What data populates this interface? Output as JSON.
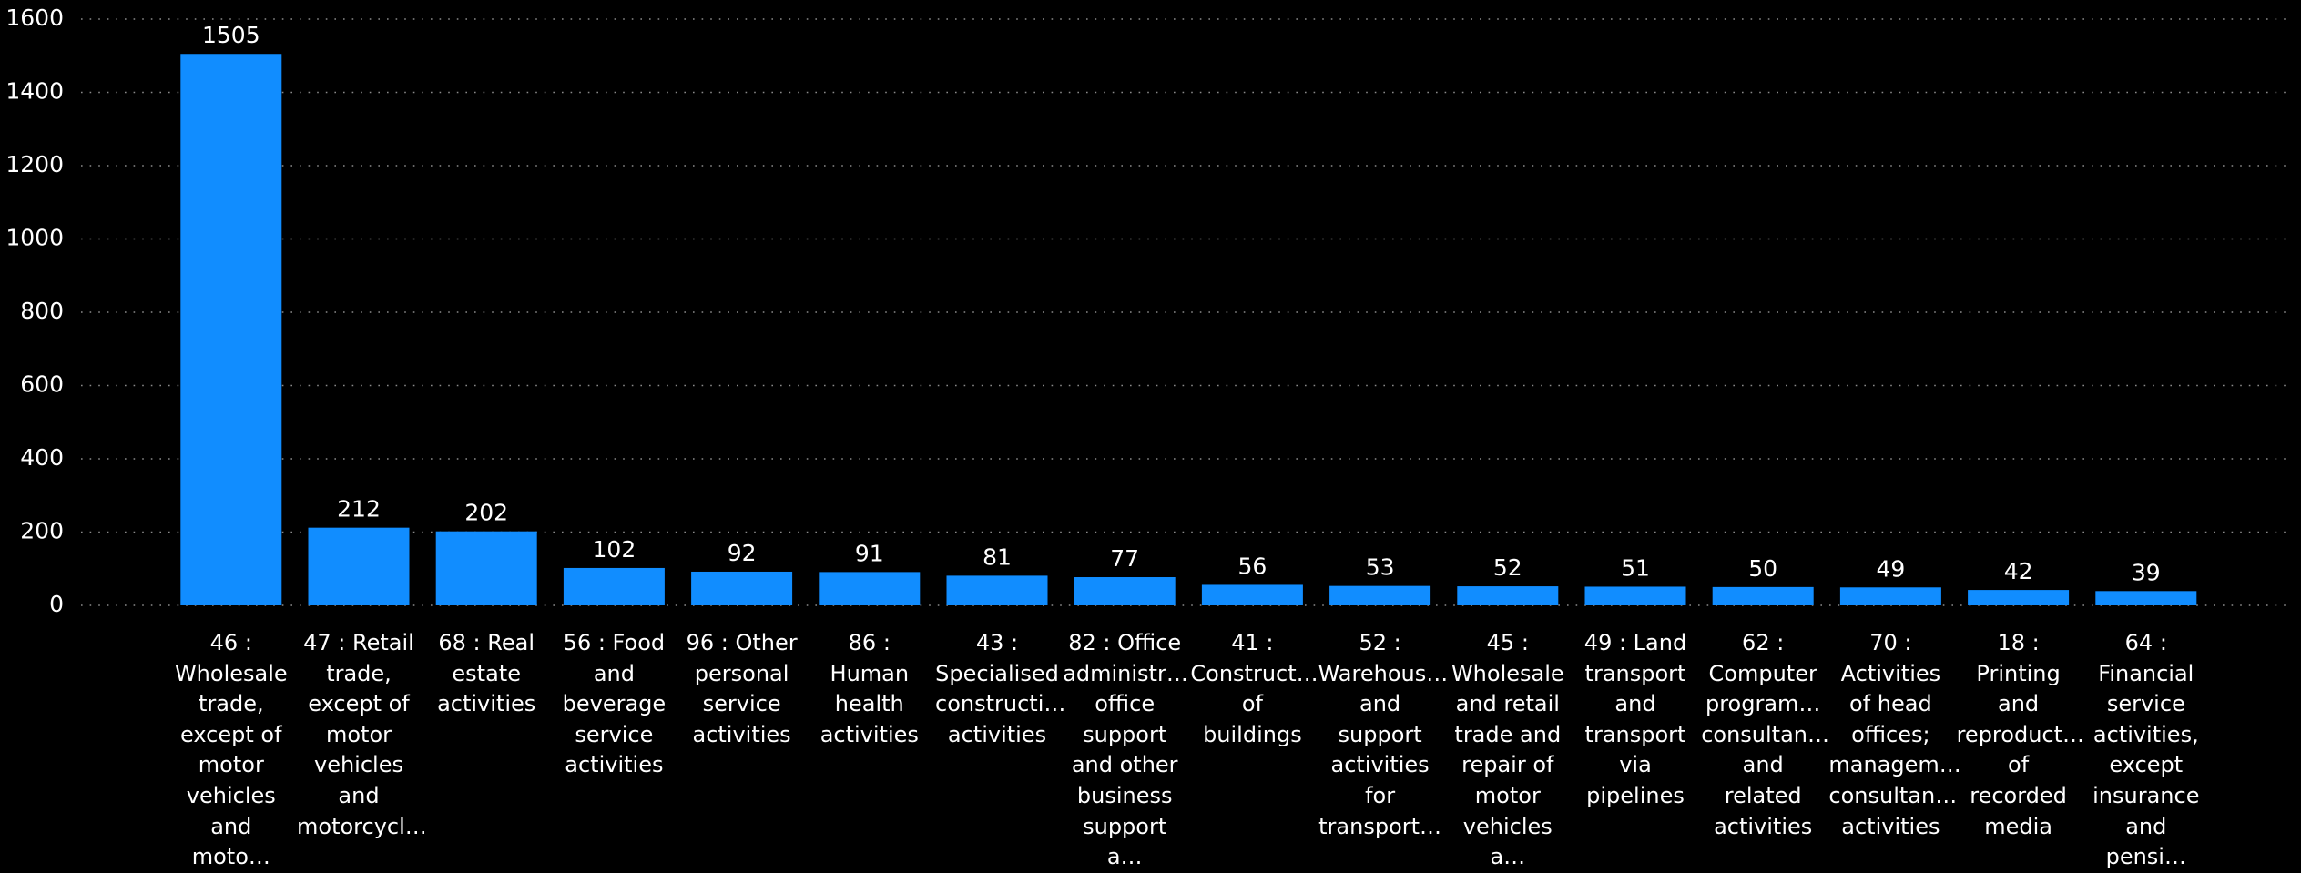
{
  "chart_data": {
    "type": "bar",
    "categories": [
      "46 : Wholesale trade, except of motor vehicles and moto…",
      "47 : Retail trade, except of motor vehicles and motorcycl…",
      "68 : Real estate activities",
      "56 : Food and beverage service activities",
      "96 : Other personal service activities",
      "86 : Human health activities",
      "43 : Specialised constructi… activities",
      "82 : Office administr… office support and other business support a…",
      "41 : Construct… of buildings",
      "52 : Warehous… and support activities for transport…",
      "45 : Wholesale and retail trade and repair of motor vehicles a…",
      "49 : Land transport and transport via pipelines",
      "62 : Computer program… consultan… and related activities",
      "70 : Activities of head offices; managem… consultan… activities",
      "18 : Printing and reproduct… of recorded media",
      "64 : Financial service activities, except insurance and pensi…"
    ],
    "values": [
      1505,
      212,
      202,
      102,
      92,
      91,
      81,
      77,
      56,
      53,
      52,
      51,
      50,
      49,
      42,
      39
    ],
    "color": "#118dff",
    "ylim": [
      0,
      1600
    ],
    "yticks": [
      0,
      200,
      400,
      600,
      800,
      1000,
      1200,
      1400,
      1600
    ],
    "grid": true
  }
}
